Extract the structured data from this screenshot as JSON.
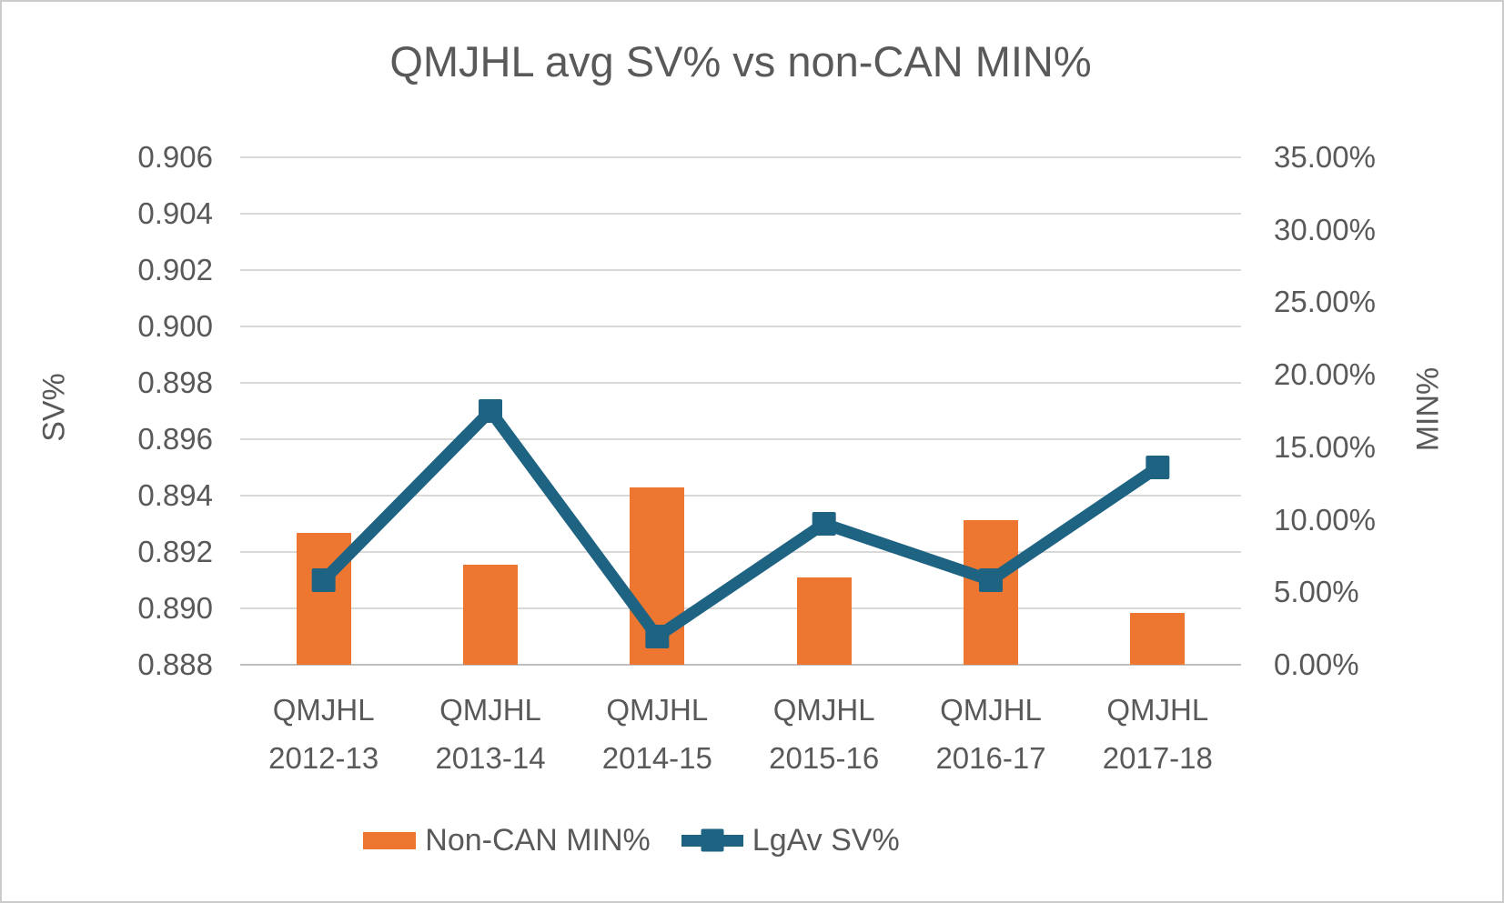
{
  "window": {
    "background": "#FFFFFF",
    "border_color": "#CBCBCB"
  },
  "chart_data": {
    "type": "combo",
    "title": "QMJHL avg SV% vs non-CAN MIN%",
    "categories": [
      [
        "QMJHL",
        "2012-13"
      ],
      [
        "QMJHL",
        "2013-14"
      ],
      [
        "QMJHL",
        "2014-15"
      ],
      [
        "QMJHL",
        "2015-16"
      ],
      [
        "QMJHL",
        "2016-17"
      ],
      [
        "QMJHL",
        "2017-18"
      ]
    ],
    "series": [
      {
        "name": "Non-CAN MIN%",
        "chart_type": "bar",
        "axis": "right",
        "color": "#ED7631",
        "values_pct": [
          9.1,
          6.9,
          12.2,
          6.0,
          10.0,
          3.6
        ]
      },
      {
        "name": "LgAv SV%",
        "chart_type": "line",
        "axis": "left",
        "color": "#1F6383",
        "values": [
          0.891,
          0.897,
          0.889,
          0.893,
          0.891,
          0.895
        ]
      }
    ],
    "left_axis": {
      "title": "SV%",
      "min": 0.888,
      "max": 0.906,
      "step": 0.002,
      "tick_labels": [
        "0.906",
        "0.904",
        "0.902",
        "0.900",
        "0.898",
        "0.896",
        "0.894",
        "0.892",
        "0.890",
        "0.888"
      ]
    },
    "right_axis": {
      "title": "MIN%",
      "min": 0,
      "max": 35,
      "step": 5,
      "tick_labels": [
        "35.00%",
        "30.00%",
        "25.00%",
        "20.00%",
        "15.00%",
        "10.00%",
        "5.00%",
        "0.00%"
      ]
    },
    "legend_position": "bottom",
    "grid": true,
    "gridline_color": "#D9D9D9",
    "axis_line_color": "#BFBFBF",
    "text_color": "#595959"
  },
  "legend": {
    "items": [
      {
        "label": "Non-CAN MIN%"
      },
      {
        "label": "LgAv SV%"
      }
    ]
  }
}
